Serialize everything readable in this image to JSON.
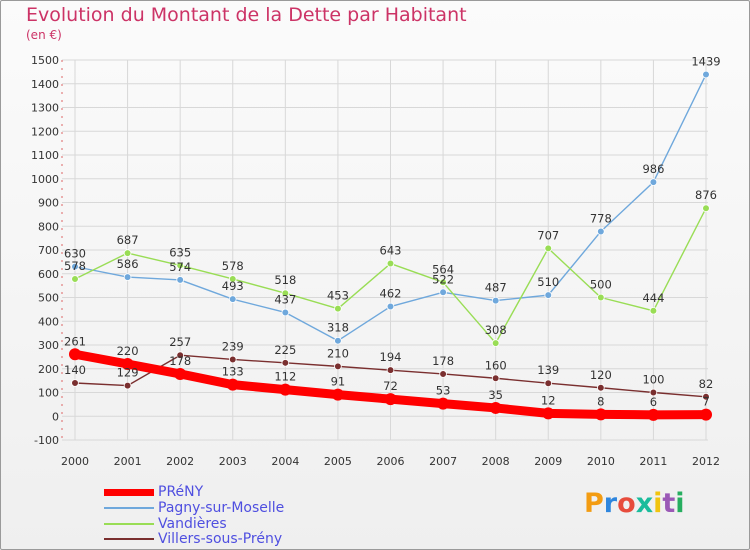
{
  "header": {
    "title": "Evolution du Montant de la Dette par Habitant",
    "subtitle": "(en €)"
  },
  "logo": {
    "text": "Proxiti",
    "colors": [
      "#f39c12",
      "#2e86de",
      "#e74c3c",
      "#1abc9c",
      "#f1c40f",
      "#9b59b6",
      "#27ae60"
    ]
  },
  "chart_data": {
    "type": "line",
    "x": [
      "2000",
      "2001",
      "2002",
      "2003",
      "2004",
      "2005",
      "2006",
      "2007",
      "2008",
      "2009",
      "2010",
      "2011",
      "2012"
    ],
    "ylim": [
      -100,
      1500
    ],
    "yticks": [
      -100,
      0,
      100,
      200,
      300,
      400,
      500,
      600,
      700,
      800,
      900,
      1000,
      1100,
      1200,
      1300,
      1400,
      1500
    ],
    "grid": true,
    "legend_position": "bottom-left",
    "series": [
      {
        "name": "PRéNY",
        "color": "#ff0000",
        "emphasis": true,
        "values": [
          261,
          220,
          178,
          133,
          112,
          91,
          72,
          53,
          35,
          12,
          8,
          6,
          7
        ],
        "labels": [
          "261",
          "220",
          "178",
          "133",
          "112",
          "91",
          "72",
          "53",
          "35",
          "12",
          "8",
          "6",
          "7"
        ]
      },
      {
        "name": "Pagny-sur-Moselle",
        "color": "#6fa8dc",
        "values": [
          630,
          586,
          574,
          493,
          437,
          318,
          462,
          522,
          487,
          510,
          778,
          986,
          1439
        ],
        "labels": [
          "630",
          "586",
          "574",
          "493",
          "437",
          "318",
          "462",
          "522",
          "487",
          "510",
          "778",
          "986",
          "1439"
        ]
      },
      {
        "name": "Vandières",
        "color": "#99dd55",
        "values": [
          578,
          687,
          635,
          578,
          518,
          453,
          643,
          564,
          308,
          707,
          500,
          444,
          876
        ],
        "labels": [
          "578",
          "687",
          "635",
          "578",
          "518",
          "453",
          "643",
          "564",
          "308",
          "707",
          "500",
          "444",
          "876"
        ]
      },
      {
        "name": "Villers-sous-Prény",
        "color": "#7a2f2f",
        "values": [
          140,
          129,
          257,
          239,
          225,
          210,
          194,
          178,
          160,
          139,
          120,
          100,
          82
        ],
        "labels": [
          "140",
          "129",
          "257",
          "239",
          "225",
          "210",
          "194",
          "178",
          "160",
          "139",
          "120",
          "100",
          "82"
        ]
      }
    ]
  }
}
